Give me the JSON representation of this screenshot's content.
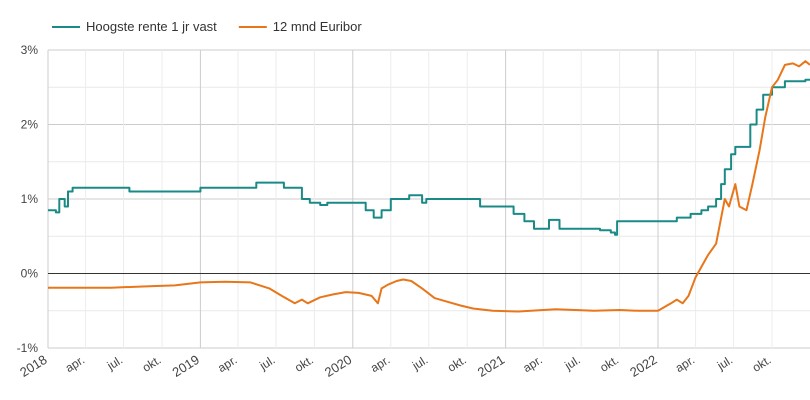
{
  "chart_data": {
    "type": "line",
    "legend_position": "top-left",
    "grid": true,
    "x_range": [
      "2018-01-01",
      "2022-12-31"
    ],
    "ylim": [
      -1,
      3
    ],
    "yticks": [
      {
        "value": -1,
        "label": "-1%"
      },
      {
        "value": 0,
        "label": "0%"
      },
      {
        "value": 1,
        "label": "1%"
      },
      {
        "value": 2,
        "label": "2%"
      },
      {
        "value": 3,
        "label": "3%"
      }
    ],
    "xticks": [
      {
        "date": "2018-01-01",
        "label": "2018",
        "major": true
      },
      {
        "date": "2018-04-01",
        "label": "apr.",
        "major": false
      },
      {
        "date": "2018-07-01",
        "label": "jul.",
        "major": false
      },
      {
        "date": "2018-10-01",
        "label": "okt.",
        "major": false
      },
      {
        "date": "2019-01-01",
        "label": "2019",
        "major": true
      },
      {
        "date": "2019-04-01",
        "label": "apr.",
        "major": false
      },
      {
        "date": "2019-07-01",
        "label": "jul.",
        "major": false
      },
      {
        "date": "2019-10-01",
        "label": "okt.",
        "major": false
      },
      {
        "date": "2020-01-01",
        "label": "2020",
        "major": true
      },
      {
        "date": "2020-04-01",
        "label": "apr.",
        "major": false
      },
      {
        "date": "2020-07-01",
        "label": "jul.",
        "major": false
      },
      {
        "date": "2020-10-01",
        "label": "okt.",
        "major": false
      },
      {
        "date": "2021-01-01",
        "label": "2021",
        "major": true
      },
      {
        "date": "2021-04-01",
        "label": "apr.",
        "major": false
      },
      {
        "date": "2021-07-01",
        "label": "jul.",
        "major": false
      },
      {
        "date": "2021-10-01",
        "label": "okt.",
        "major": false
      },
      {
        "date": "2022-01-01",
        "label": "2022",
        "major": true
      },
      {
        "date": "2022-04-01",
        "label": "apr.",
        "major": false
      },
      {
        "date": "2022-07-01",
        "label": "jul.",
        "major": false
      },
      {
        "date": "2022-10-01",
        "label": "okt.",
        "major": false
      }
    ],
    "series": [
      {
        "name": "Hoogste rente 1 jr vast",
        "color": "#1a8a87",
        "step": true,
        "points": [
          [
            "2018-01-01",
            0.85
          ],
          [
            "2018-01-20",
            0.82
          ],
          [
            "2018-01-28",
            1.0
          ],
          [
            "2018-02-10",
            0.9
          ],
          [
            "2018-02-18",
            1.1
          ],
          [
            "2018-03-01",
            1.15
          ],
          [
            "2018-07-15",
            1.1
          ],
          [
            "2018-10-01",
            1.1
          ],
          [
            "2019-01-01",
            1.15
          ],
          [
            "2019-05-15",
            1.22
          ],
          [
            "2019-07-20",
            1.15
          ],
          [
            "2019-09-01",
            1.0
          ],
          [
            "2019-09-20",
            0.95
          ],
          [
            "2019-10-15",
            0.92
          ],
          [
            "2019-11-01",
            0.95
          ],
          [
            "2020-02-01",
            0.85
          ],
          [
            "2020-02-20",
            0.75
          ],
          [
            "2020-03-10",
            0.85
          ],
          [
            "2020-04-01",
            1.0
          ],
          [
            "2020-05-15",
            1.05
          ],
          [
            "2020-06-15",
            0.95
          ],
          [
            "2020-06-25",
            1.0
          ],
          [
            "2020-11-01",
            0.9
          ],
          [
            "2021-01-20",
            0.8
          ],
          [
            "2021-02-15",
            0.7
          ],
          [
            "2021-03-10",
            0.6
          ],
          [
            "2021-04-15",
            0.72
          ],
          [
            "2021-05-10",
            0.6
          ],
          [
            "2021-08-15",
            0.58
          ],
          [
            "2021-09-10",
            0.55
          ],
          [
            "2021-09-20",
            0.52
          ],
          [
            "2021-09-25",
            0.7
          ],
          [
            "2022-02-15",
            0.75
          ],
          [
            "2022-03-20",
            0.8
          ],
          [
            "2022-04-15",
            0.85
          ],
          [
            "2022-05-01",
            0.9
          ],
          [
            "2022-05-20",
            1.0
          ],
          [
            "2022-06-01",
            1.2
          ],
          [
            "2022-06-10",
            1.4
          ],
          [
            "2022-06-25",
            1.6
          ],
          [
            "2022-07-05",
            1.7
          ],
          [
            "2022-08-10",
            2.0
          ],
          [
            "2022-08-25",
            2.2
          ],
          [
            "2022-09-10",
            2.4
          ],
          [
            "2022-10-01",
            2.5
          ],
          [
            "2022-11-01",
            2.58
          ],
          [
            "2022-12-20",
            2.6
          ]
        ]
      },
      {
        "name": "12 mnd Euribor",
        "color": "#e8761a",
        "step": false,
        "points": [
          [
            "2018-01-01",
            -0.19
          ],
          [
            "2018-06-01",
            -0.19
          ],
          [
            "2018-09-01",
            -0.17
          ],
          [
            "2018-11-01",
            -0.16
          ],
          [
            "2019-01-01",
            -0.12
          ],
          [
            "2019-03-01",
            -0.11
          ],
          [
            "2019-05-01",
            -0.12
          ],
          [
            "2019-06-15",
            -0.2
          ],
          [
            "2019-07-15",
            -0.3
          ],
          [
            "2019-08-15",
            -0.4
          ],
          [
            "2019-09-01",
            -0.35
          ],
          [
            "2019-09-15",
            -0.4
          ],
          [
            "2019-10-15",
            -0.32
          ],
          [
            "2019-11-15",
            -0.28
          ],
          [
            "2019-12-15",
            -0.25
          ],
          [
            "2020-01-15",
            -0.26
          ],
          [
            "2020-02-15",
            -0.3
          ],
          [
            "2020-03-01",
            -0.4
          ],
          [
            "2020-03-10",
            -0.2
          ],
          [
            "2020-03-25",
            -0.15
          ],
          [
            "2020-04-15",
            -0.1
          ],
          [
            "2020-05-01",
            -0.08
          ],
          [
            "2020-05-20",
            -0.1
          ],
          [
            "2020-06-15",
            -0.2
          ],
          [
            "2020-07-15",
            -0.33
          ],
          [
            "2020-08-15",
            -0.38
          ],
          [
            "2020-09-15",
            -0.43
          ],
          [
            "2020-10-15",
            -0.47
          ],
          [
            "2020-12-01",
            -0.5
          ],
          [
            "2021-02-01",
            -0.51
          ],
          [
            "2021-05-01",
            -0.48
          ],
          [
            "2021-08-01",
            -0.5
          ],
          [
            "2021-10-01",
            -0.49
          ],
          [
            "2021-11-15",
            -0.5
          ],
          [
            "2022-01-01",
            -0.5
          ],
          [
            "2022-02-01",
            -0.4
          ],
          [
            "2022-02-15",
            -0.35
          ],
          [
            "2022-03-01",
            -0.4
          ],
          [
            "2022-03-15",
            -0.3
          ],
          [
            "2022-04-01",
            -0.05
          ],
          [
            "2022-05-01",
            0.25
          ],
          [
            "2022-05-20",
            0.4
          ],
          [
            "2022-06-10",
            1.0
          ],
          [
            "2022-06-20",
            0.9
          ],
          [
            "2022-07-05",
            1.2
          ],
          [
            "2022-07-15",
            0.9
          ],
          [
            "2022-08-01",
            0.85
          ],
          [
            "2022-08-15",
            1.2
          ],
          [
            "2022-09-01",
            1.65
          ],
          [
            "2022-09-15",
            2.1
          ],
          [
            "2022-10-01",
            2.5
          ],
          [
            "2022-10-15",
            2.6
          ],
          [
            "2022-11-01",
            2.8
          ],
          [
            "2022-11-20",
            2.82
          ],
          [
            "2022-12-05",
            2.78
          ],
          [
            "2022-12-20",
            2.85
          ],
          [
            "2022-12-31",
            2.8
          ]
        ]
      }
    ]
  }
}
